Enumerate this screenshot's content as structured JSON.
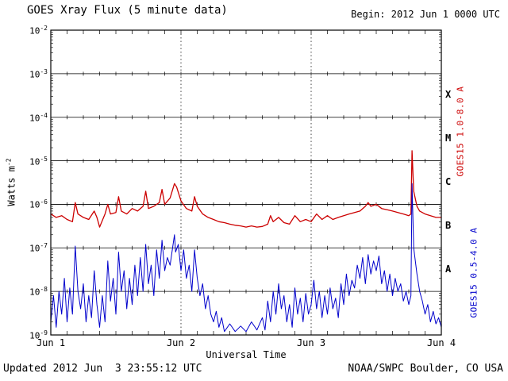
{
  "page": {
    "title": "GOES Xray Flux (5 minute data)",
    "begin_label": "Begin: 2012 Jun 1 0000 UTC",
    "footer_left": "Updated 2012 Jun  3 23:55:12 UTC",
    "footer_right": "NOAA/SWPC Boulder, CO USA"
  },
  "chart_data": {
    "type": "line",
    "title": "GOES Xray Flux (5 minute data)",
    "xlabel": "Universal Time",
    "ylabel_base": "Watts m",
    "ylabel_exp": "-2",
    "y_scale": "log",
    "y_log_range": [
      -9,
      -2
    ],
    "x_range_hours": [
      0,
      72
    ],
    "x_minor_tick_hours": 3,
    "grid": "horizontal-solid, day-boundaries-dotted",
    "day_lines_hours": [
      24,
      48
    ],
    "x_ticks": [
      {
        "label": "Jun 1",
        "hour": 0
      },
      {
        "label": "Jun 2",
        "hour": 24
      },
      {
        "label": "Jun 3",
        "hour": 48
      },
      {
        "label": "Jun 4",
        "hour": 72
      }
    ],
    "y_ticks": [
      -2,
      -3,
      -4,
      -5,
      -6,
      -7,
      -8,
      -9
    ],
    "flare_classes": [
      {
        "label": "X",
        "mid_exp": -3.5
      },
      {
        "label": "M",
        "mid_exp": -4.5
      },
      {
        "label": "C",
        "mid_exp": -5.5
      },
      {
        "label": "B",
        "mid_exp": -6.5
      },
      {
        "label": "A",
        "mid_exp": -7.5
      }
    ],
    "series": [
      {
        "name": "GOES15 1.0-8.0 A",
        "color": "#cc0000",
        "x_hours": [
          0,
          1,
          2,
          3,
          4,
          4.5,
          5,
          6,
          7,
          8,
          8.5,
          9,
          10,
          10.5,
          11,
          12,
          12.5,
          13,
          14,
          15,
          16,
          17,
          17.5,
          18,
          19,
          20,
          20.5,
          21,
          22,
          22.8,
          23.2,
          24,
          25,
          26,
          26.5,
          27,
          28,
          29,
          30,
          31,
          32,
          33,
          34,
          35,
          36,
          37,
          38,
          39,
          40,
          40.5,
          41,
          42,
          43,
          44,
          45,
          46,
          47,
          48,
          49,
          50,
          51,
          52,
          53,
          54,
          55,
          56,
          57,
          58,
          58.5,
          59,
          60,
          61,
          62,
          63,
          64,
          65,
          66,
          66.4,
          66.6,
          66.9,
          67.5,
          68,
          69,
          70,
          71,
          72
        ],
        "values": [
          6e-07,
          5e-07,
          5.5e-07,
          4.5e-07,
          4e-07,
          1.1e-06,
          6e-07,
          5e-07,
          4.5e-07,
          7e-07,
          5e-07,
          3e-07,
          6e-07,
          1e-06,
          6e-07,
          6.5e-07,
          1.5e-06,
          7e-07,
          6e-07,
          8e-07,
          7e-07,
          9e-07,
          2e-06,
          8e-07,
          9e-07,
          1.1e-06,
          2.2e-06,
          1e-06,
          1.4e-06,
          3e-06,
          2.5e-06,
          1.2e-06,
          8e-07,
          7e-07,
          1.5e-06,
          9e-07,
          6e-07,
          5e-07,
          4.5e-07,
          4e-07,
          3.8e-07,
          3.5e-07,
          3.3e-07,
          3.2e-07,
          3e-07,
          3.2e-07,
          3e-07,
          3.1e-07,
          3.5e-07,
          5.5e-07,
          4e-07,
          5e-07,
          3.8e-07,
          3.5e-07,
          5.5e-07,
          4e-07,
          4.5e-07,
          4e-07,
          6e-07,
          4.5e-07,
          5.5e-07,
          4.5e-07,
          5e-07,
          5.5e-07,
          6e-07,
          6.5e-07,
          7e-07,
          9e-07,
          1.1e-06,
          9e-07,
          1e-06,
          8e-07,
          7.5e-07,
          7e-07,
          6.5e-07,
          6e-07,
          5.5e-07,
          6e-07,
          1.7e-05,
          2e-06,
          9e-07,
          7e-07,
          6e-07,
          5.5e-07,
          5e-07,
          5e-07
        ]
      },
      {
        "name": "GOES15 0.5-4.0 A",
        "color": "#0000cc",
        "x_hours": [
          0,
          0.5,
          1,
          1.5,
          2,
          2.5,
          3,
          3.5,
          4,
          4.5,
          5,
          5.5,
          6,
          6.5,
          7,
          7.5,
          8,
          8.5,
          9,
          9.5,
          10,
          10.5,
          11,
          11.5,
          12,
          12.5,
          13,
          13.5,
          14,
          14.5,
          15,
          15.5,
          16,
          16.5,
          17,
          17.5,
          18,
          18.5,
          19,
          19.5,
          20,
          20.5,
          21,
          21.5,
          22,
          22.8,
          23,
          23.5,
          24,
          24.5,
          25,
          25.5,
          26,
          26.5,
          27,
          27.5,
          28,
          28.5,
          29,
          29.5,
          30,
          30.5,
          31,
          31.5,
          32,
          33,
          34,
          35,
          36,
          37,
          38,
          39,
          39.5,
          40,
          40.5,
          41,
          41.5,
          42,
          42.5,
          43,
          43.5,
          44,
          44.5,
          45,
          45.5,
          46,
          46.5,
          47,
          47.5,
          48,
          48.5,
          49,
          49.5,
          50,
          50.5,
          51,
          51.5,
          52,
          52.5,
          53,
          53.5,
          54,
          54.5,
          55,
          55.5,
          56,
          56.5,
          57,
          57.5,
          58,
          58.5,
          59,
          59.5,
          60,
          60.5,
          61,
          61.5,
          62,
          62.5,
          63,
          63.5,
          64,
          64.5,
          65,
          65.5,
          66,
          66.4,
          66.6,
          66.9,
          67.5,
          68,
          68.5,
          69,
          69.5,
          70,
          70.5,
          71,
          71.5,
          72
        ],
        "values": [
          2e-09,
          8e-09,
          1.5e-09,
          1e-08,
          3e-09,
          2e-08,
          2e-09,
          1.2e-08,
          3e-09,
          1.1e-07,
          1e-08,
          4e-09,
          1.5e-08,
          2e-09,
          8e-09,
          2.5e-09,
          3e-08,
          5e-09,
          1.5e-09,
          8e-09,
          2e-09,
          5e-08,
          6e-09,
          2e-08,
          3e-09,
          8e-08,
          1e-08,
          3e-08,
          4e-09,
          2e-08,
          5e-09,
          4e-08,
          8e-09,
          6e-08,
          1e-08,
          1.2e-07,
          1.5e-08,
          4e-08,
          8e-09,
          9e-08,
          2e-08,
          1.5e-07,
          3e-08,
          6e-08,
          4e-08,
          2e-07,
          8e-08,
          1.2e-07,
          3e-08,
          9e-08,
          2e-08,
          4e-08,
          1e-08,
          9e-08,
          2e-08,
          8e-09,
          1.5e-08,
          4e-09,
          8e-09,
          3e-09,
          2e-09,
          3.5e-09,
          1.5e-09,
          2.5e-09,
          1.2e-09,
          1.8e-09,
          1.2e-09,
          1.6e-09,
          1.2e-09,
          2e-09,
          1.3e-09,
          2.5e-09,
          1.3e-09,
          6e-09,
          2e-09,
          1e-08,
          3e-09,
          1.5e-08,
          4e-09,
          8e-09,
          2e-09,
          5e-09,
          1.5e-09,
          1.2e-08,
          3e-09,
          7e-09,
          2e-09,
          9e-09,
          3e-09,
          5e-09,
          1.8e-08,
          4e-09,
          1e-08,
          2.5e-09,
          8e-09,
          3e-09,
          1.2e-08,
          4e-09,
          7e-09,
          2.5e-09,
          1.5e-08,
          5e-09,
          2.5e-08,
          8e-09,
          1.8e-08,
          1.2e-08,
          4e-08,
          2e-08,
          6e-08,
          1.5e-08,
          7e-08,
          2.5e-08,
          5e-08,
          3e-08,
          6.5e-08,
          1.5e-08,
          3e-08,
          1e-08,
          2.5e-08,
          8e-09,
          2e-08,
          1e-08,
          1.5e-08,
          6e-09,
          1e-08,
          5e-09,
          8e-09,
          3e-06,
          1e-07,
          2.5e-08,
          1e-08,
          6e-09,
          3e-09,
          5e-09,
          2e-09,
          3.5e-09,
          1.8e-09,
          2.5e-09,
          1.5e-09
        ]
      }
    ]
  }
}
